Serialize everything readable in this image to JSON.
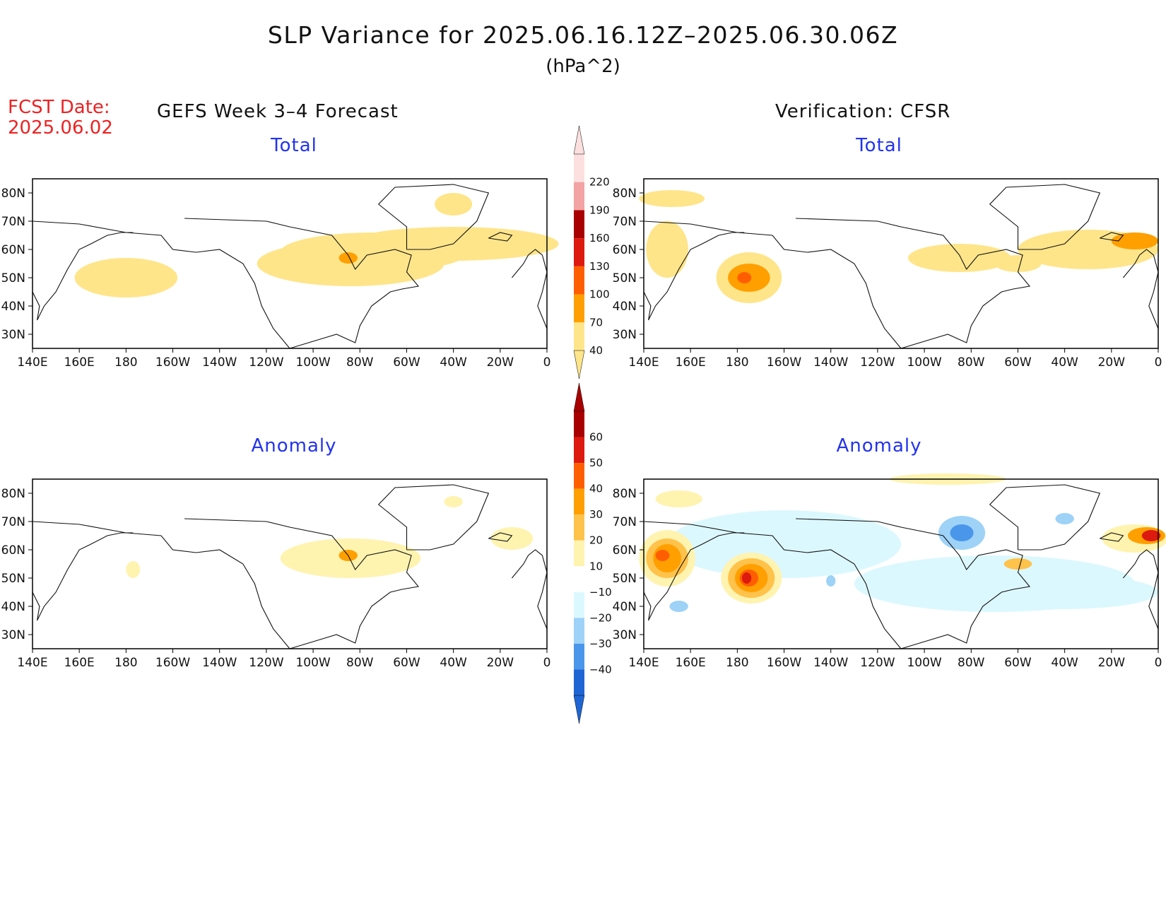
{
  "title": "SLP Variance for 2025.06.16.12Z–2025.06.30.06Z",
  "units": "(hPa^2)",
  "forecast_date": {
    "label": "FCST Date:",
    "value": "2025.06.02"
  },
  "columns": {
    "left": "GEFS Week 3–4 Forecast",
    "right": "Verification: CFSR"
  },
  "panels": [
    {
      "id": "forecast-total",
      "title": "Total"
    },
    {
      "id": "verif-total",
      "title": "Total"
    },
    {
      "id": "forecast-anomaly",
      "title": "Anomaly"
    },
    {
      "id": "verif-anomaly",
      "title": "Anomaly"
    }
  ],
  "axes": {
    "lon_labels": [
      "140E",
      "160E",
      "180",
      "160W",
      "140W",
      "120W",
      "100W",
      "80W",
      "60W",
      "40W",
      "20W",
      "0"
    ],
    "lat_labels": [
      "80N",
      "70N",
      "60N",
      "50N",
      "40N",
      "30N"
    ]
  },
  "colorbars": {
    "total": {
      "labels": [
        "220",
        "190",
        "160",
        "130",
        "100",
        "70",
        "40"
      ],
      "colors": [
        "#fce0e0",
        "#f3a3a3",
        "#a80000",
        "#dd1a10",
        "#ff5e00",
        "#ff9f00",
        "#ffe58a"
      ]
    },
    "anomaly": {
      "labels": [
        "60",
        "50",
        "40",
        "30",
        "20",
        "10",
        "−10",
        "−20",
        "−30",
        "−40"
      ],
      "colors": [
        "#a80000",
        "#dd1a10",
        "#ff5e00",
        "#ff9f00",
        "#ffc24a",
        "#fff3b0",
        "#ffffff",
        "#dcf8ff",
        "#9ed2f7",
        "#4a96ea",
        "#1f66d4"
      ]
    }
  },
  "chart_data": [
    {
      "type": "heatmap",
      "panel": "GEFS Week 3–4 Forecast — Total",
      "title": "Total",
      "units": "hPa^2",
      "xlim": [
        "140E",
        "0"
      ],
      "ylim": [
        "25N",
        "85N"
      ],
      "features": [
        {
          "lon": "180",
          "lat": "50N",
          "level": "40-70"
        },
        {
          "lon": "85W",
          "lat": "57N",
          "level": "70-100"
        },
        {
          "lon": "75W",
          "lat": "52N",
          "level": "40-70"
        },
        {
          "lon": "30W",
          "lat": "62N",
          "level": "40-70"
        },
        {
          "lon": "40W",
          "lat": "76N",
          "level": "40-70"
        }
      ]
    },
    {
      "type": "heatmap",
      "panel": "Verification: CFSR — Total",
      "title": "Total",
      "units": "hPa^2",
      "xlim": [
        "140E",
        "0"
      ],
      "ylim": [
        "25N",
        "85N"
      ],
      "features": [
        {
          "lon": "175W",
          "lat": "50N",
          "level": "100-130"
        },
        {
          "lon": "5W",
          "lat": "62N",
          "level": "70-100"
        },
        {
          "lon": "60W",
          "lat": "55N",
          "level": "70-100"
        },
        {
          "lon": "150E",
          "lat": "78N",
          "level": "40-70"
        },
        {
          "lon": "145E",
          "lat": "58N",
          "level": "40-70"
        }
      ]
    },
    {
      "type": "heatmap",
      "panel": "GEFS Week 3–4 Forecast — Anomaly",
      "title": "Anomaly",
      "units": "hPa^2",
      "xlim": [
        "140E",
        "0"
      ],
      "ylim": [
        "25N",
        "85N"
      ],
      "features": [
        {
          "lon": "85W",
          "lat": "57N",
          "level": "20-30"
        },
        {
          "lon": "85W",
          "lat": "56N",
          "level": "10-20"
        },
        {
          "lon": "15W",
          "lat": "64N",
          "level": "10-20"
        },
        {
          "lon": "175E",
          "lat": "53N",
          "level": "10-20"
        }
      ]
    },
    {
      "type": "heatmap",
      "panel": "Verification: CFSR — Anomaly",
      "title": "Anomaly",
      "units": "hPa^2",
      "xlim": [
        "140E",
        "0"
      ],
      "ylim": [
        "25N",
        "85N"
      ],
      "features": [
        {
          "lon": "175W",
          "lat": "50N",
          "level": "50-60"
        },
        {
          "lon": "5W",
          "lat": "65N",
          "level": "50-60"
        },
        {
          "lon": "150E",
          "lat": "57N",
          "level": "40-50"
        },
        {
          "lon": "85W",
          "lat": "66N",
          "level": "-20--30"
        },
        {
          "lon": "40W",
          "lat": "70N",
          "level": "-20--30"
        },
        {
          "lon": "155E",
          "lat": "40N",
          "level": "-20--30"
        },
        {
          "lon": "55W",
          "lat": "54N",
          "level": "30-40"
        }
      ]
    }
  ]
}
